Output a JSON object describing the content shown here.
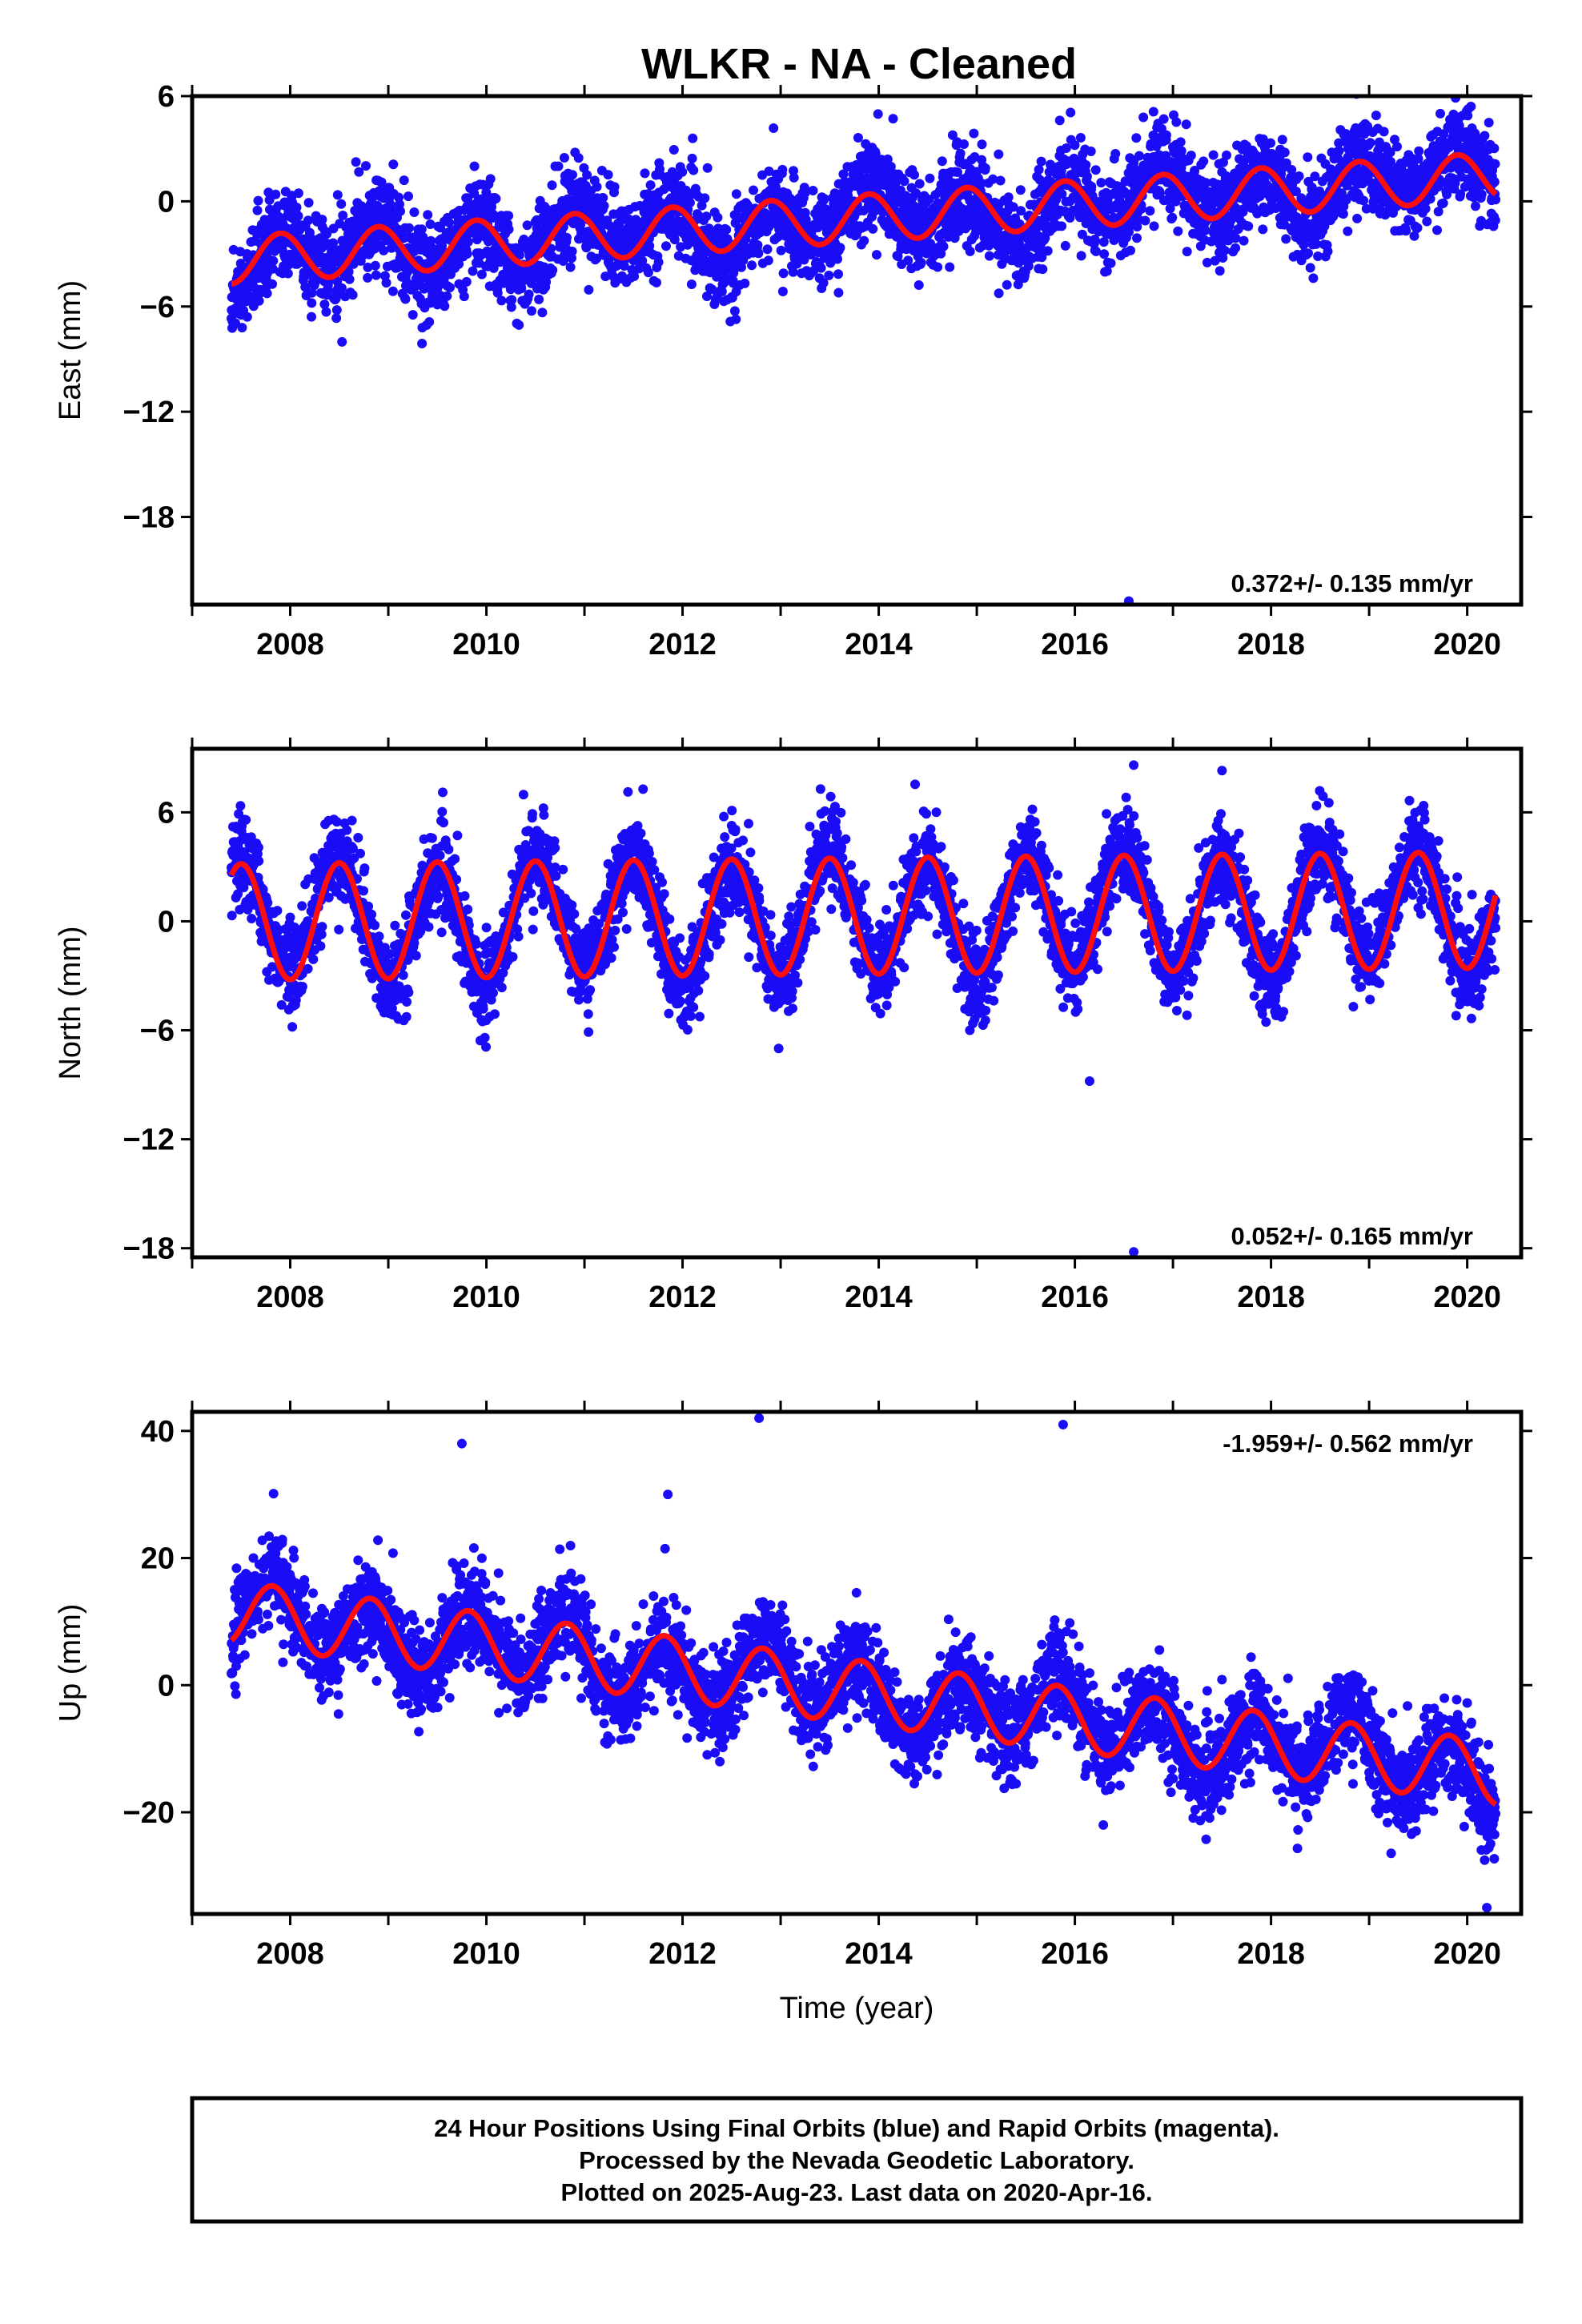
{
  "title": "WLKR  - NA - Cleaned",
  "colors": {
    "points": "#1a0cf5",
    "model": "#ff0d0d",
    "frame": "#000000"
  },
  "chart_data": [
    {
      "type": "scatter",
      "ylabel": "East (mm)",
      "xlabel": "",
      "xlim": [
        2007.0,
        2020.55
      ],
      "ylim": [
        -23,
        6
      ],
      "x_ticks": [
        2008,
        2010,
        2012,
        2014,
        2016,
        2018,
        2020
      ],
      "y_ticks": [
        6,
        0,
        -6,
        -12,
        -18
      ],
      "rate_label": "0.372+/- 0.135 mm/yr",
      "rate_position": "bottom-right",
      "model": {
        "start": 2007.4,
        "end": 2020.29,
        "offset": -0.9,
        "trend": 0.372,
        "amplitude": 1.35,
        "peak_phase": 0.9,
        "anchor_year": 2014.0
      },
      "scatter_sd": 1.3,
      "outliers": [
        {
          "x": 2016.55,
          "y": -22.8
        }
      ]
    },
    {
      "type": "scatter",
      "ylabel": "North (mm)",
      "xlabel": "",
      "xlim": [
        2007.0,
        2020.55
      ],
      "ylim": [
        -18.5,
        9.5
      ],
      "x_ticks": [
        2008,
        2010,
        2012,
        2014,
        2016,
        2018,
        2020
      ],
      "y_ticks": [
        6,
        0,
        -6,
        -12,
        -18
      ],
      "rate_label": "0.052+/- 0.165 mm/yr",
      "rate_position": "bottom-right",
      "model": {
        "start": 2007.4,
        "end": 2020.29,
        "offset": 0.3,
        "trend": 0.052,
        "amplitude": 3.2,
        "peak_phase": 0.5,
        "anchor_year": 2014.0
      },
      "scatter_sd": 1.2,
      "outliers": [
        {
          "x": 2016.6,
          "y": -18.2
        },
        {
          "x": 2016.15,
          "y": -8.8
        },
        {
          "x": 2012.98,
          "y": -7.0
        },
        {
          "x": 2016.6,
          "y": 8.6
        },
        {
          "x": 2017.5,
          "y": 8.3
        }
      ]
    },
    {
      "type": "scatter",
      "ylabel": "Up (mm)",
      "xlabel": "Time (year)",
      "xlim": [
        2007.0,
        2020.55
      ],
      "ylim": [
        -36,
        43
      ],
      "x_ticks": [
        2008,
        2010,
        2012,
        2014,
        2016,
        2018,
        2020
      ],
      "y_ticks": [
        40,
        20,
        0,
        -20
      ],
      "rate_label": "-1.959+/- 0.562 mm/yr",
      "rate_position": "top-right",
      "model": {
        "start": 2007.4,
        "end": 2020.29,
        "offset": -1.5,
        "trend": -1.959,
        "amplitude": 5.0,
        "peak_phase": 0.82,
        "anchor_year": 2014.0
      },
      "scatter_sd": 3.6,
      "outliers": [
        {
          "x": 2012.78,
          "y": 42
        },
        {
          "x": 2015.88,
          "y": 41
        },
        {
          "x": 2009.75,
          "y": 38
        },
        {
          "x": 2011.85,
          "y": 30
        },
        {
          "x": 2020.2,
          "y": -35
        }
      ]
    }
  ],
  "footer": {
    "lines": [
      "24 Hour Positions Using Final Orbits (blue) and Rapid Orbits (magenta).",
      "Processed by the Nevada Geodetic Laboratory.",
      "Plotted on 2025-Aug-23. Last data on 2020-Apr-16."
    ]
  }
}
